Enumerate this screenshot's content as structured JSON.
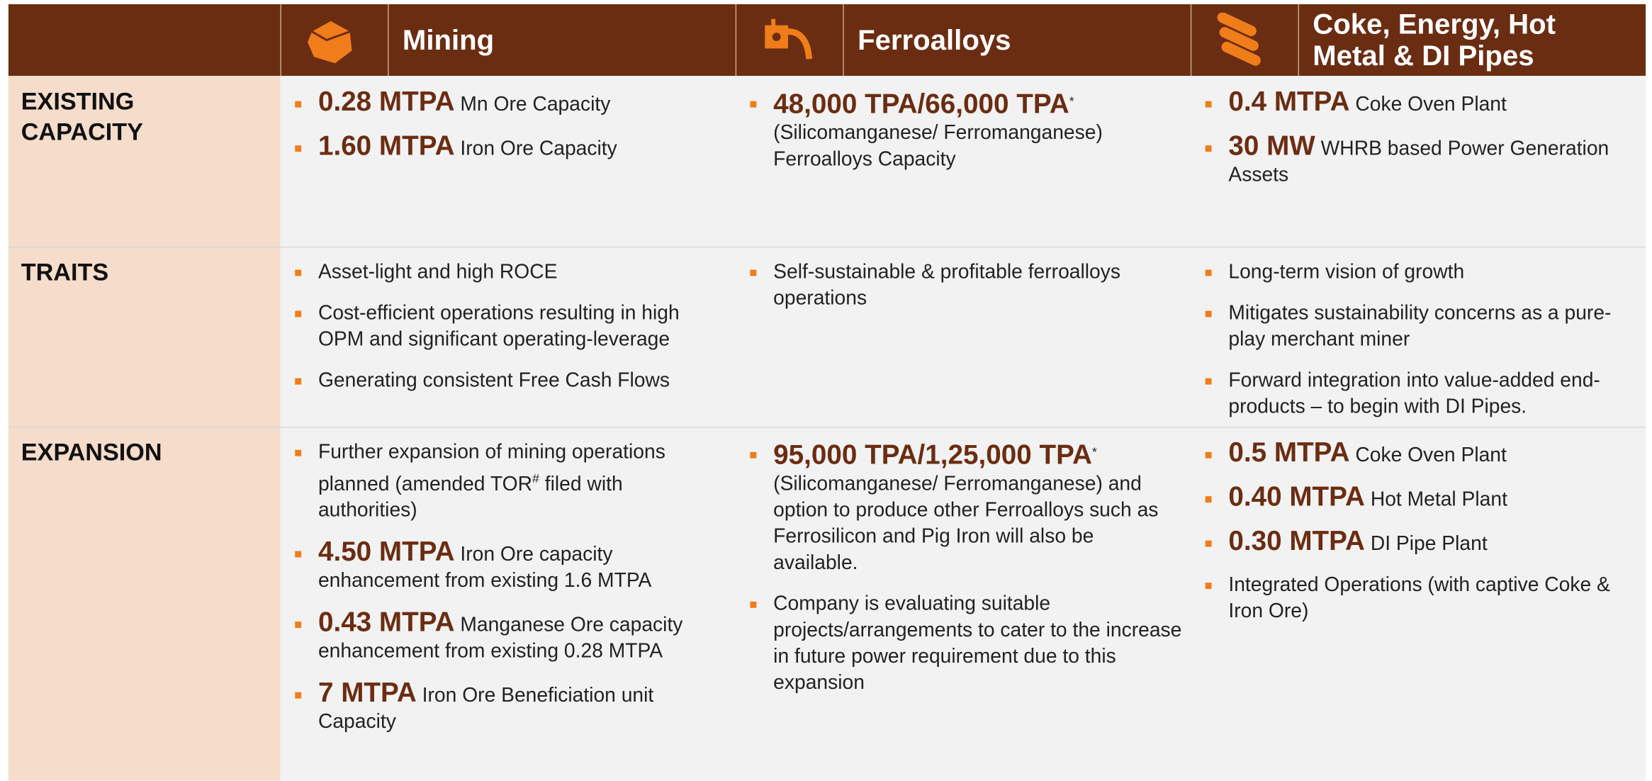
{
  "header": {
    "columns": [
      {
        "title": "Mining"
      },
      {
        "title": "Ferroalloys"
      },
      {
        "title": "Coke, Energy, Hot Metal & DI Pipes"
      }
    ]
  },
  "rows": [
    {
      "label": "EXISTING CAPACITY",
      "cells": [
        [
          [
            {
              "kind": "lead",
              "text": "0.28 MTPA"
            },
            {
              "kind": "plain",
              "text": " Mn Ore Capacity"
            }
          ],
          [
            {
              "kind": "lead",
              "text": "1.60 MTPA"
            },
            {
              "kind": "plain",
              "text": " Iron Ore Capacity"
            }
          ]
        ],
        [
          [
            {
              "kind": "lead",
              "text": "48,000 TPA/66,000 TPA"
            },
            {
              "kind": "sup",
              "text": "*"
            },
            {
              "kind": "plain",
              "text": " (Silicomanganese/ Ferromanganese) Ferroalloys Capacity"
            }
          ]
        ],
        [
          [
            {
              "kind": "lead",
              "text": "0.4 MTPA"
            },
            {
              "kind": "plain",
              "text": " Coke Oven Plant"
            }
          ],
          [
            {
              "kind": "lead",
              "text": "30 MW"
            },
            {
              "kind": "plain",
              "text": " WHRB based Power Generation Assets"
            }
          ]
        ]
      ]
    },
    {
      "label": "TRAITS",
      "cells": [
        [
          [
            {
              "kind": "plain",
              "text": "Asset-light and high ROCE"
            }
          ],
          [
            {
              "kind": "plain",
              "text": "Cost-efficient operations resulting in high OPM and significant operating-leverage"
            }
          ],
          [
            {
              "kind": "plain",
              "text": "Generating consistent Free Cash Flows"
            }
          ]
        ],
        [
          [
            {
              "kind": "plain",
              "text": "Self-sustainable & profitable ferroalloys operations"
            }
          ]
        ],
        [
          [
            {
              "kind": "plain",
              "text": "Long-term vision of growth"
            }
          ],
          [
            {
              "kind": "plain",
              "text": "Mitigates sustainability concerns as a pure-play merchant miner"
            }
          ],
          [
            {
              "kind": "plain",
              "text": "Forward integration into value-added end-products – to begin with DI Pipes."
            }
          ]
        ]
      ]
    },
    {
      "label": "EXPANSION",
      "cells": [
        [
          [
            {
              "kind": "plain",
              "text": "Further expansion of mining operations planned (amended TOR"
            },
            {
              "kind": "sup",
              "text": "#"
            },
            {
              "kind": "plain",
              "text": " filed with authorities)"
            }
          ],
          [
            {
              "kind": "lead",
              "text": "4.50 MTPA"
            },
            {
              "kind": "plain",
              "text": " Iron Ore capacity enhancement from existing 1.6 MTPA"
            }
          ],
          [
            {
              "kind": "lead",
              "text": "0.43 MTPA"
            },
            {
              "kind": "plain",
              "text": " Manganese Ore capacity enhancement from existing 0.28 MTPA"
            }
          ],
          [
            {
              "kind": "lead",
              "text": "7 MTPA"
            },
            {
              "kind": "plain",
              "text": " Iron Ore Beneficiation unit Capacity"
            }
          ]
        ],
        [
          [
            {
              "kind": "lead",
              "text": "95,000 TPA/1,25,000 TPA"
            },
            {
              "kind": "sup",
              "text": "*"
            },
            {
              "kind": "plain",
              "text": " (Silicomanganese/ Ferromanganese) and option to produce other Ferroalloys such as Ferrosilicon and Pig Iron will also be available."
            }
          ],
          [
            {
              "kind": "plain",
              "text": "Company is evaluating suitable projects/arrangements to cater to the increase in future power requirement due to this expansion"
            }
          ]
        ],
        [
          [
            {
              "kind": "lead",
              "text": "0.5 MTPA"
            },
            {
              "kind": "plain",
              "text": " Coke Oven Plant"
            }
          ],
          [
            {
              "kind": "lead",
              "text": "0.40 MTPA"
            },
            {
              "kind": "plain",
              "text": " Hot Metal Plant"
            }
          ],
          [
            {
              "kind": "lead",
              "text": "0.30 MTPA"
            },
            {
              "kind": "plain",
              "text": " DI Pipe Plant"
            }
          ],
          [
            {
              "kind": "plain",
              "text": "Integrated Operations (with captive Coke & Iron Ore)"
            }
          ]
        ]
      ]
    }
  ]
}
